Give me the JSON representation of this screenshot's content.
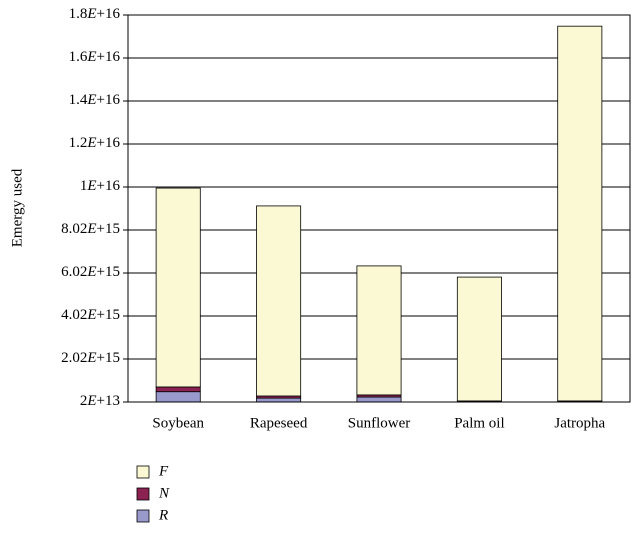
{
  "chart_data": {
    "type": "stacked-bar",
    "y_label": "Emergy used",
    "categories": [
      "Soybean",
      "Rapeseed",
      "Sunflower",
      "Palm oil",
      "Jatropha"
    ],
    "series": [
      {
        "name": "R",
        "color": "#9999cc",
        "values": [
          500000000000000.0,
          200000000000000.0,
          250000000000000.0,
          20000000000000.0,
          20000000000000.0
        ]
      },
      {
        "name": "N",
        "color": "#8b2252",
        "values": [
          220000000000000.0,
          100000000000000.0,
          100000000000000.0,
          50000000000000.0,
          50000000000000.0
        ]
      },
      {
        "name": "F",
        "color": "#fbf9d3",
        "values": [
          9250000000000000.0,
          8840000000000000.0,
          6000000000000000.0,
          5760000000000000.0,
          1.743e+16
        ]
      }
    ],
    "ylim": [
      20000000000000.0,
      1.802e+16
    ],
    "yticks": [
      {
        "value": 20000000000000.0,
        "label": "2E+13"
      },
      {
        "value": 2020000000000000.0,
        "label": "2.02E+15"
      },
      {
        "value": 4020000000000000.0,
        "label": "4.02E+15"
      },
      {
        "value": 6020000000000000.0,
        "label": "6.02E+15"
      },
      {
        "value": 8020000000000000.0,
        "label": "8.02E+15"
      },
      {
        "value": 1.002e+16,
        "label": "1E+16"
      },
      {
        "value": 1.202e+16,
        "label": "1.2E+16"
      },
      {
        "value": 1.402e+16,
        "label": "1.4E+16"
      },
      {
        "value": 1.602e+16,
        "label": "1.6E+16"
      },
      {
        "value": 1.802e+16,
        "label": "1.8E+16"
      }
    ],
    "grid": true,
    "legend": "bottom"
  }
}
